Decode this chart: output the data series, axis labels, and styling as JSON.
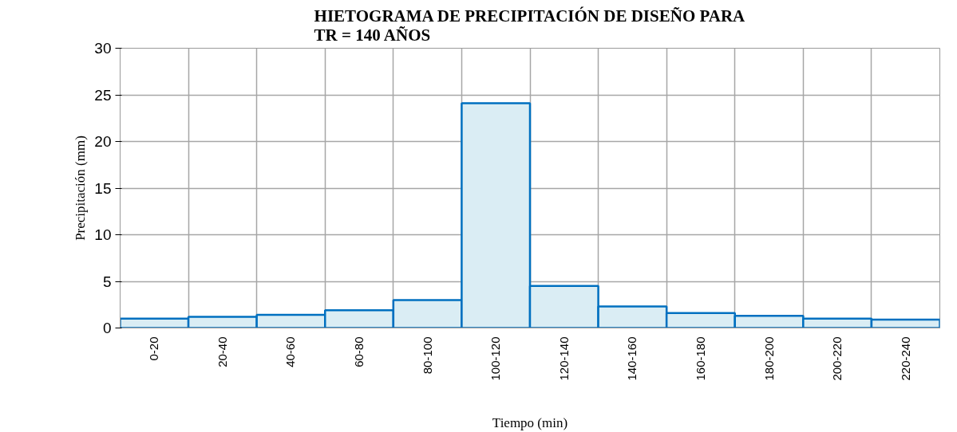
{
  "chart_data": {
    "type": "bar",
    "title": "HIETOGRAMA DE PRECIPITACIÓN DE DISEÑO PARA\nTR = 140 AÑOS",
    "xlabel": "Tiempo (min)",
    "ylabel": "Precipitación (mm)",
    "categories": [
      "0-20",
      "20-40",
      "40-60",
      "60-80",
      "80-100",
      "100-120",
      "120-140",
      "140-160",
      "160-180",
      "180-200",
      "200-220",
      "220-240"
    ],
    "series": [
      {
        "color": "#0070c0",
        "values": [
          1.0,
          1.2,
          1.4,
          1.9,
          3.0,
          24.1,
          4.5,
          2.3,
          1.6,
          1.3,
          1.0,
          0.9
        ]
      }
    ],
    "ylim": [
      0,
      30
    ],
    "yticks": [
      0,
      5,
      10,
      15,
      20,
      25,
      30
    ],
    "grid": true
  }
}
